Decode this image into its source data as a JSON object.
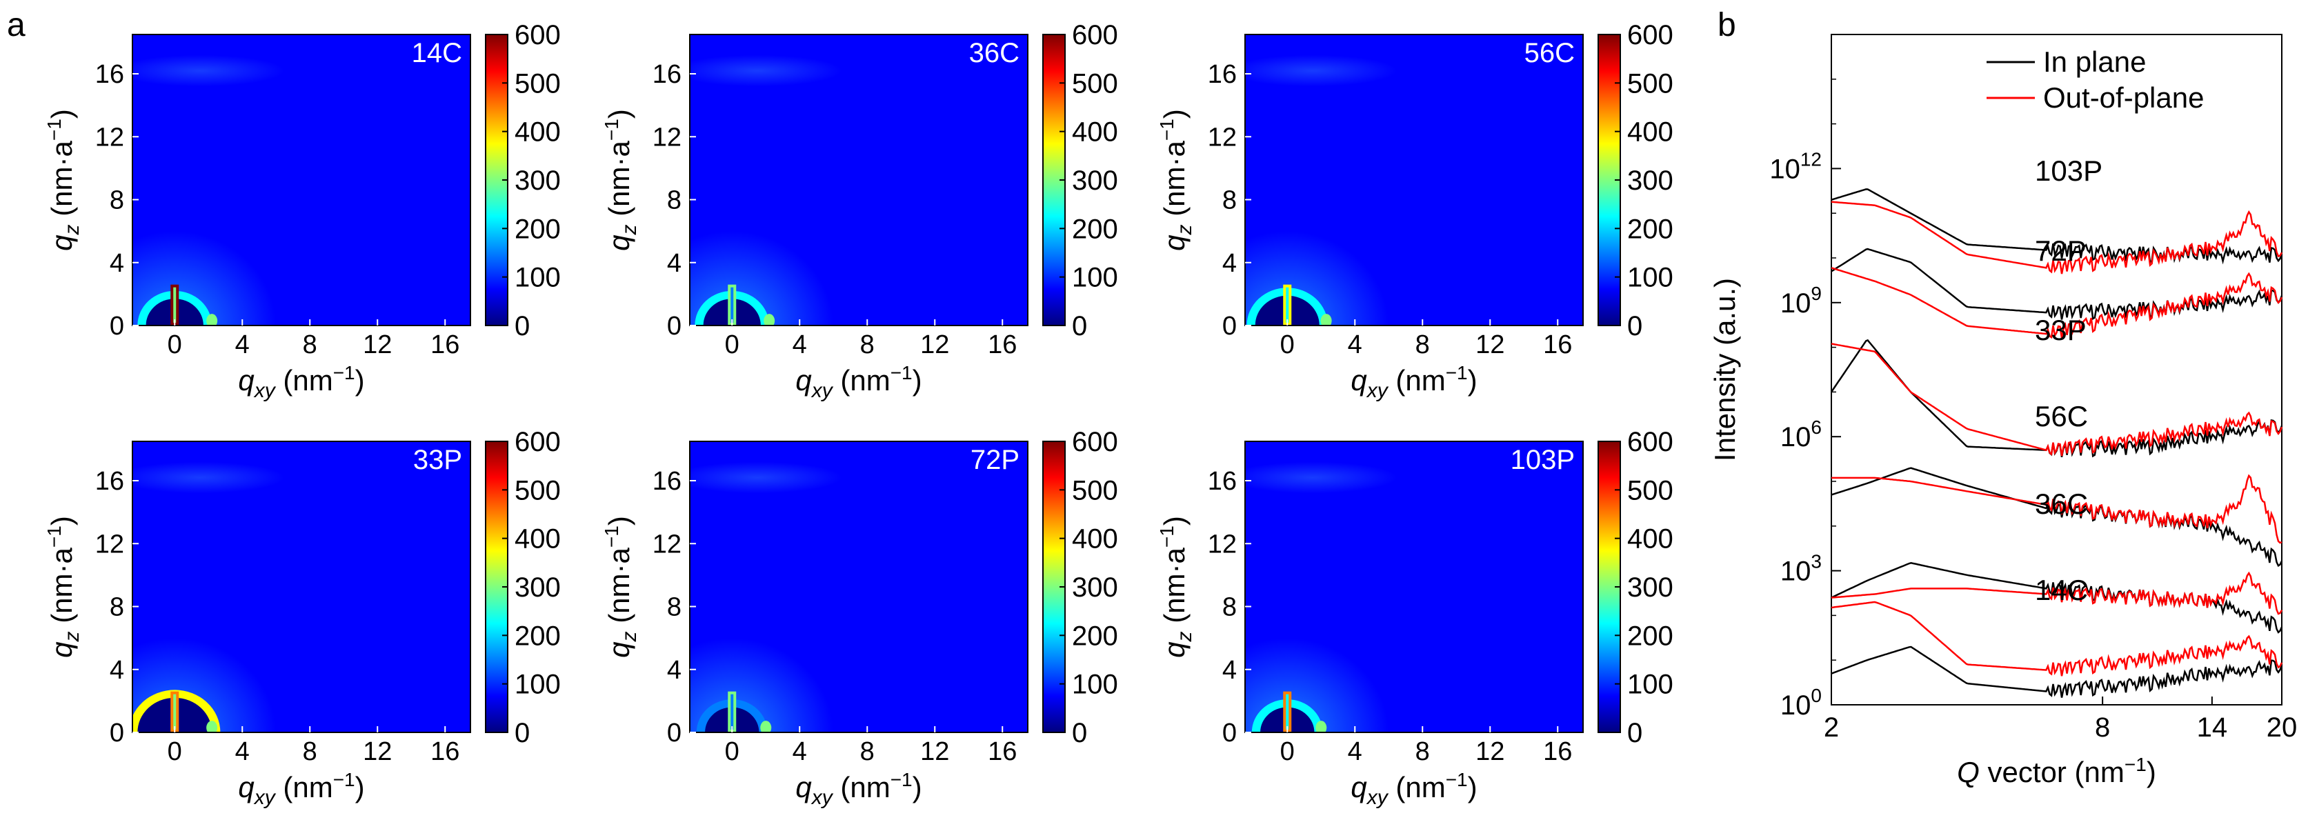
{
  "panel_labels": {
    "a": "a",
    "b": "b"
  },
  "colorbar_ticks": [
    "0",
    "100",
    "200",
    "300",
    "400",
    "500",
    "600"
  ],
  "colormap": [
    "#00007f",
    "#0000ff",
    "#007fff",
    "#00ffff",
    "#7fff7f",
    "#ffff00",
    "#ff7f00",
    "#ff0000",
    "#7f0000"
  ],
  "heatmap_axes": {
    "x_label_main": "q",
    "x_label_sub": "xy",
    "x_label_unit": " (nm",
    "x_label_sup": "−1",
    "x_label_close": ")",
    "y_label_main": "q",
    "y_label_sub": "z",
    "y_label_unit": " (nm·a",
    "y_label_sup": "−1",
    "y_label_close": ")",
    "x_ticks": [
      "0",
      "4",
      "8",
      "12",
      "16"
    ],
    "y_ticks": [
      "0",
      "4",
      "8",
      "12",
      "16"
    ]
  },
  "plot_b": {
    "ylabel": "Intensity (a.u.)",
    "x_label_main": "Q",
    "x_label_unit": " vector (nm",
    "x_label_sup": "−1",
    "x_label_close": ")",
    "x_ticks": [
      "2",
      "8",
      "14",
      "20"
    ],
    "y_tick_base": "10",
    "y_tick_exps": [
      "0",
      "3",
      "6",
      "9",
      "12"
    ],
    "legend": [
      "In plane",
      "Out-of-plane"
    ],
    "curve_labels": [
      "103P",
      "72P",
      "33P",
      "56C",
      "36C",
      "14C"
    ]
  },
  "chart_data": [
    {
      "type": "heatmap",
      "title": "14C",
      "xlim": [
        -2.5,
        17.5
      ],
      "ylim": [
        0,
        18.5
      ],
      "clim": [
        0,
        600
      ],
      "background_level": 75,
      "arc_radius": 1.7,
      "arc_level": 230,
      "beam_level": 600,
      "side_peak_x": 2.2
    },
    {
      "type": "heatmap",
      "title": "36C",
      "xlim": [
        -2.5,
        17.5
      ],
      "ylim": [
        0,
        18.5
      ],
      "clim": [
        0,
        600
      ],
      "background_level": 95,
      "arc_radius": 1.7,
      "arc_level": 230,
      "beam_level": 350,
      "side_peak_x": 2.2
    },
    {
      "type": "heatmap",
      "title": "56C",
      "xlim": [
        -2.5,
        17.5
      ],
      "ylim": [
        0,
        18.5
      ],
      "clim": [
        0,
        600
      ],
      "background_level": 95,
      "arc_radius": 1.9,
      "arc_level": 240,
      "beam_level": 420,
      "side_peak_x": 2.3
    },
    {
      "type": "heatmap",
      "title": "33P",
      "xlim": [
        -2.5,
        17.5
      ],
      "ylim": [
        0,
        18.5
      ],
      "clim": [
        0,
        600
      ],
      "background_level": 90,
      "arc_radius": 2.2,
      "arc_level": 380,
      "beam_level": 520,
      "side_peak_x": 2.2
    },
    {
      "type": "heatmap",
      "title": "72P",
      "xlim": [
        -2.5,
        17.5
      ],
      "ylim": [
        0,
        18.5
      ],
      "clim": [
        0,
        600
      ],
      "background_level": 78,
      "arc_radius": 1.6,
      "arc_level": 220,
      "beam_level": 300,
      "side_peak_x": 2.0
    },
    {
      "type": "heatmap",
      "title": "103P",
      "xlim": [
        -2.5,
        17.5
      ],
      "ylim": [
        0,
        18.5
      ],
      "clim": [
        0,
        600
      ],
      "background_level": 82,
      "arc_radius": 1.6,
      "arc_level": 230,
      "beam_level": 480,
      "side_peak_x": 2.0
    },
    {
      "type": "line",
      "xlim": [
        2,
        20
      ],
      "ylim": [
        1,
        1000000000000000.0
      ],
      "yscale": "log",
      "series": [
        {
          "name": "In plane",
          "color": "#000000"
        },
        {
          "name": "Out-of-plane",
          "color": "#ff0000"
        }
      ],
      "curves": [
        {
          "label": "103P",
          "in_plane": [
            [
              2,
              200000000000.0
            ],
            [
              2.4,
              350000000000.0
            ],
            [
              3,
              100000000000.0
            ],
            [
              4,
              20000000000.0
            ],
            [
              6,
              15000000000.0
            ],
            [
              10,
              12000000000.0
            ],
            [
              14,
              12000000000.0
            ],
            [
              17,
              12000000000.0
            ],
            [
              20,
              11000000000.0
            ]
          ],
          "out_of_plane": [
            [
              2,
              180000000000.0
            ],
            [
              2.5,
              150000000000.0
            ],
            [
              3,
              80000000000.0
            ],
            [
              4,
              12000000000.0
            ],
            [
              6,
              6000000000.0
            ],
            [
              10,
              10000000000.0
            ],
            [
              14,
              16000000000.0
            ],
            [
              16,
              35000000000.0
            ],
            [
              17,
              100000000000.0
            ],
            [
              18,
              30000000000.0
            ],
            [
              20,
              12000000000.0
            ]
          ]
        },
        {
          "label": "72P",
          "in_plane": [
            [
              2,
              5000000000.0
            ],
            [
              2.4,
              16000000000.0
            ],
            [
              3,
              8000000000.0
            ],
            [
              4,
              800000000.0
            ],
            [
              6,
              600000000.0
            ],
            [
              10,
              700000000.0
            ],
            [
              14,
              900000000.0
            ],
            [
              17,
              1200000000.0
            ],
            [
              20,
              1300000000.0
            ]
          ],
          "out_of_plane": [
            [
              2,
              6000000000.0
            ],
            [
              2.5,
              3000000000.0
            ],
            [
              3,
              1500000000.0
            ],
            [
              4,
              300000000.0
            ],
            [
              6,
              200000000.0
            ],
            [
              10,
              600000000.0
            ],
            [
              14,
              1200000000.0
            ],
            [
              16,
              2000000000.0
            ],
            [
              17,
              4000000000.0
            ],
            [
              18,
              1800000000.0
            ],
            [
              20,
              1200000000.0
            ]
          ]
        },
        {
          "label": "33P",
          "in_plane": [
            [
              2,
              10000000.0
            ],
            [
              2.4,
              150000000.0
            ],
            [
              3,
              10000000.0
            ],
            [
              4,
              600000.0
            ],
            [
              6,
              500000.0
            ],
            [
              10,
              600000.0
            ],
            [
              14,
              1000000.0
            ],
            [
              17,
              1500000.0
            ],
            [
              20,
              1600000.0
            ]
          ],
          "out_of_plane": [
            [
              2,
              120000000.0
            ],
            [
              2.5,
              80000000.0
            ],
            [
              3,
              10000000.0
            ],
            [
              4,
              1500000.0
            ],
            [
              6,
              500000.0
            ],
            [
              10,
              900000.0
            ],
            [
              14,
              1500000.0
            ],
            [
              16,
              2000000.0
            ],
            [
              17,
              3000000.0
            ],
            [
              18,
              1500000.0
            ],
            [
              20,
              1500000.0
            ]
          ]
        },
        {
          "label": "56C",
          "in_plane": [
            [
              2,
              50000.0
            ],
            [
              2.4,
              90000.0
            ],
            [
              3,
              200000.0
            ],
            [
              4,
              80000.0
            ],
            [
              6,
              25000.0
            ],
            [
              10,
              15000.0
            ],
            [
              14,
              10000.0
            ],
            [
              17,
              4000.0
            ],
            [
              20,
              1500.0
            ]
          ],
          "out_of_plane": [
            [
              2,
              120000.0
            ],
            [
              2.5,
              120000.0
            ],
            [
              3,
              100000.0
            ],
            [
              4,
              60000.0
            ],
            [
              6,
              30000.0
            ],
            [
              10,
              15000.0
            ],
            [
              14,
              12000.0
            ],
            [
              16,
              30000.0
            ],
            [
              17,
              130000.0
            ],
            [
              18,
              40000.0
            ],
            [
              20,
              4000.0
            ]
          ]
        },
        {
          "label": "36C",
          "in_plane": [
            [
              2,
              250.0
            ],
            [
              2.4,
              600.0
            ],
            [
              3,
              1500.0
            ],
            [
              4,
              800.0
            ],
            [
              6,
              400.0
            ],
            [
              10,
              250.0
            ],
            [
              14,
              200.0
            ],
            [
              17,
              100.0
            ],
            [
              20,
              50.0
            ]
          ],
          "out_of_plane": [
            [
              2,
              250.0
            ],
            [
              2.5,
              300.0
            ],
            [
              3,
              400.0
            ],
            [
              4,
              400.0
            ],
            [
              6,
              300.0
            ],
            [
              10,
              250.0
            ],
            [
              14,
              200.0
            ],
            [
              16,
              400.0
            ],
            [
              17,
              800.0
            ],
            [
              18,
              300.0
            ],
            [
              20,
              120.0
            ]
          ]
        },
        {
          "label": "14C",
          "in_plane": [
            [
              2,
              5.0
            ],
            [
              2.4,
              10.0
            ],
            [
              3,
              20.0
            ],
            [
              4,
              3.0
            ],
            [
              6,
              2.0
            ],
            [
              10,
              3.0
            ],
            [
              14,
              5.0
            ],
            [
              17,
              6.0
            ],
            [
              20,
              7.0
            ]
          ],
          "out_of_plane": [
            [
              2,
              150.0
            ],
            [
              2.5,
              200.0
            ],
            [
              3,
              100.0
            ],
            [
              4,
              8.0
            ],
            [
              6,
              6.0
            ],
            [
              10,
              10.0
            ],
            [
              14,
              15.0
            ],
            [
              16,
              20.0
            ],
            [
              17,
              30.0
            ],
            [
              18,
              15.0
            ],
            [
              20,
              8.0
            ]
          ]
        }
      ]
    }
  ]
}
